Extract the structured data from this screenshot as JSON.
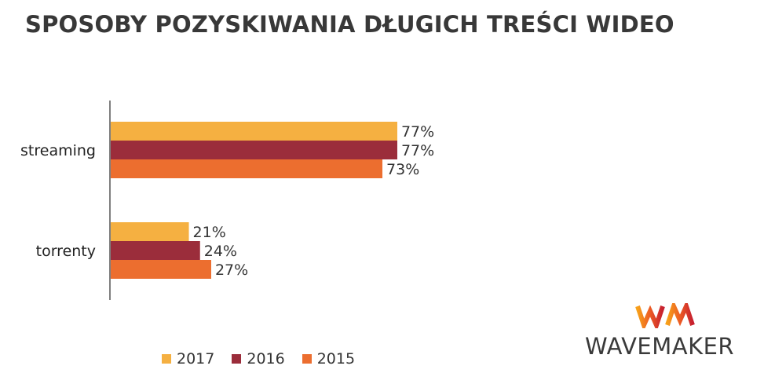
{
  "title": "SPOSOBY POZYSKIWANIA DŁUGICH TREŚCI WIDEO",
  "chart_data": {
    "type": "bar",
    "orientation": "horizontal",
    "categories": [
      "streaming",
      "torrenty"
    ],
    "series": [
      {
        "name": "2017",
        "color": "#F5B041",
        "values": [
          77,
          21
        ],
        "labels": [
          "77%",
          "21%"
        ]
      },
      {
        "name": "2016",
        "color": "#9B2D3B",
        "values": [
          77,
          24
        ],
        "labels": [
          "77%",
          "24%"
        ]
      },
      {
        "name": "2015",
        "color": "#EC6E2F",
        "values": [
          73,
          27
        ],
        "labels": [
          "73%",
          "27%"
        ]
      }
    ],
    "value_unit": "%",
    "xlim": [
      0,
      100
    ],
    "grid": false,
    "legend_placement": "bottom"
  },
  "logo": {
    "text": "WAVEMAKER",
    "mark": "WM"
  }
}
